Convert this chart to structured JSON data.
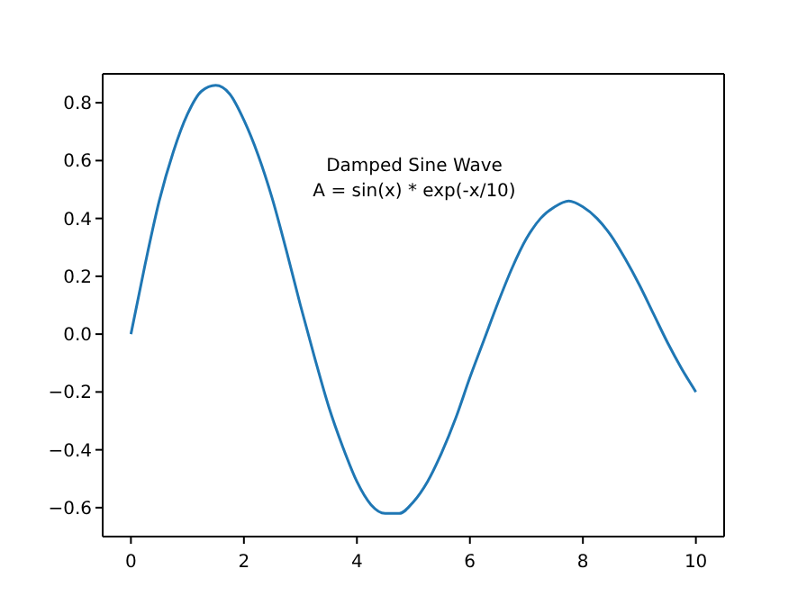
{
  "chart_data": {
    "type": "line",
    "x": [
      0,
      0.25,
      0.5,
      0.75,
      1,
      1.25,
      1.5,
      1.75,
      2,
      2.25,
      2.5,
      2.75,
      3,
      3.25,
      3.5,
      3.75,
      4,
      4.25,
      4.5,
      4.75,
      5,
      5.25,
      5.5,
      5.75,
      6,
      6.25,
      6.5,
      6.75,
      7,
      7.25,
      7.5,
      7.75,
      8,
      8.25,
      8.5,
      8.75,
      9,
      9.25,
      9.5,
      9.75,
      10
    ],
    "series": [
      {
        "color": "#1f77b4",
        "values": [
          0,
          0.24,
          0.46,
          0.63,
          0.76,
          0.84,
          0.86,
          0.83,
          0.74,
          0.62,
          0.47,
          0.29,
          0.1,
          -0.08,
          -0.25,
          -0.39,
          -0.51,
          -0.59,
          -0.62,
          -0.62,
          -0.58,
          -0.51,
          -0.41,
          -0.29,
          -0.15,
          -0.02,
          0.11,
          0.23,
          0.33,
          0.4,
          0.44,
          0.46,
          0.44,
          0.4,
          0.34,
          0.26,
          0.17,
          0.07,
          -0.03,
          -0.12,
          -0.2
        ]
      }
    ],
    "xlim": [
      -0.5,
      10.5
    ],
    "xticks": [
      0,
      2,
      4,
      6,
      8,
      10
    ],
    "ylim": [
      -0.7,
      0.9
    ],
    "yticks": [
      {
        "value": -0.6,
        "label": "−0.6"
      },
      {
        "value": -0.4,
        "label": "−0.4"
      },
      {
        "value": -0.2,
        "label": "−0.2"
      },
      {
        "value": 0,
        "label": "0.0"
      },
      {
        "value": 0.2,
        "label": "0.2"
      },
      {
        "value": 0.4,
        "label": "0.4"
      },
      {
        "value": 0.6,
        "label": "0.6"
      },
      {
        "value": 0.8,
        "label": "0.8"
      }
    ],
    "annotations": [
      "Damped Sine Wave\nA = sin(x) * exp(-x/10)"
    ],
    "grid": false,
    "legend": false,
    "marker": "none",
    "line_style": "solid"
  }
}
